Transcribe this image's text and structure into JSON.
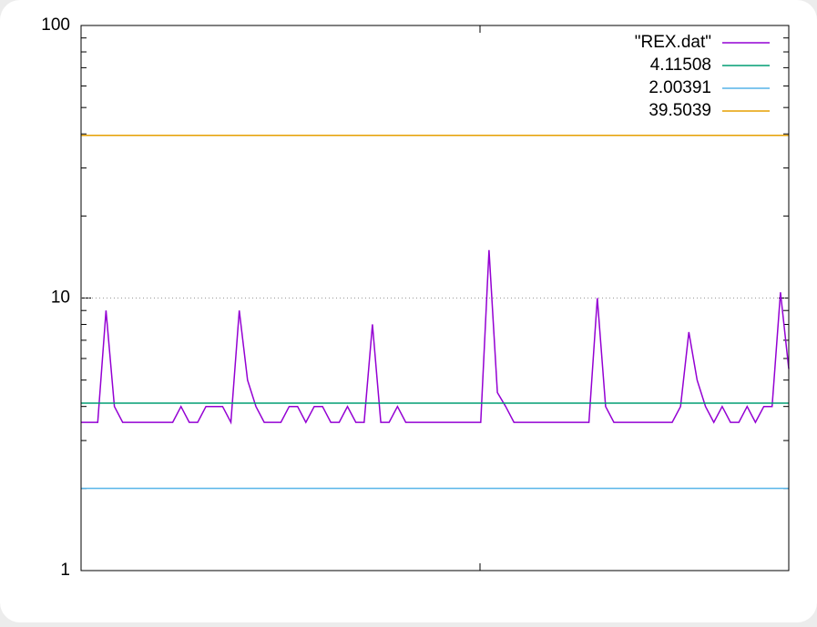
{
  "chart_data": {
    "type": "line",
    "ylim": [
      1,
      100
    ],
    "yticks": [
      1,
      10,
      100
    ],
    "log_y": true,
    "grid": true,
    "legend": "top-right",
    "series": [
      {
        "name": "\"REX.dat\"",
        "color": "#9400d3",
        "values": [
          3.5,
          3.5,
          3.5,
          9,
          4,
          3.5,
          3.5,
          3.5,
          3.5,
          3.5,
          3.5,
          3.5,
          4,
          3.5,
          3.5,
          4,
          4,
          4,
          3.5,
          9,
          5,
          4,
          3.5,
          3.5,
          3.5,
          4,
          4,
          3.5,
          4,
          4,
          3.5,
          3.5,
          4,
          3.5,
          3.5,
          8,
          3.5,
          3.5,
          4,
          3.5,
          3.5,
          3.5,
          3.5,
          3.5,
          3.5,
          3.5,
          3.5,
          3.5,
          3.5,
          15,
          4.5,
          4,
          3.5,
          3.5,
          3.5,
          3.5,
          3.5,
          3.5,
          3.5,
          3.5,
          3.5,
          3.5,
          10,
          4,
          3.5,
          3.5,
          3.5,
          3.5,
          3.5,
          3.5,
          3.5,
          3.5,
          4,
          7.5,
          5,
          4,
          3.5,
          4,
          3.5,
          3.5,
          4,
          3.5,
          4,
          4,
          10.5,
          5.5
        ]
      },
      {
        "name": "4.11508",
        "color": "#009e73",
        "value": 4.11508
      },
      {
        "name": "2.00391",
        "color": "#56b4e9",
        "value": 2.00391
      },
      {
        "name": "39.5039",
        "color": "#e69f00",
        "value": 39.5039
      }
    ]
  }
}
